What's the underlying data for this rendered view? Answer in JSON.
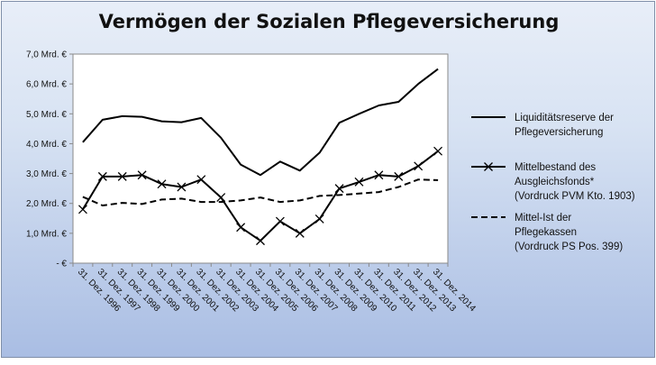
{
  "chart_data": {
    "type": "line",
    "title": "Vermögen der Sozialen Pflegeversicherung",
    "xlabel": "",
    "ylabel": "",
    "ylim": [
      0,
      7
    ],
    "yticks": [
      0,
      1,
      2,
      3,
      4,
      5,
      6,
      7
    ],
    "ytick_labels": [
      "- €",
      "1,0 Mrd. €",
      "2,0 Mrd. €",
      "3,0 Mrd. €",
      "4,0 Mrd. €",
      "5,0 Mrd. €",
      "6,0 Mrd. €",
      "7,0 Mrd. €"
    ],
    "categories": [
      "31. Dez. 1996",
      "31. Dez. 1997",
      "31. Dez. 1998",
      "31. Dez. 1999",
      "31. Dez. 2000",
      "31. Dez. 2001",
      "31. Dez. 2002",
      "31. Dez. 2003",
      "31. Dez. 2004",
      "31. Dez. 2005",
      "31. Dez. 2006",
      "31. Dez. 2007",
      "31. Dez. 2008",
      "31. Dez. 2009",
      "31. Dez. 2010",
      "31. Dez. 2011",
      "31. Dez. 2012",
      "31. Dez. 2013",
      "31. Dez. 2014"
    ],
    "grid": false,
    "legend_position": "right",
    "series": [
      {
        "name": "Liquiditätsreserve der Pflegeversicherung",
        "name_lines": [
          "Liquiditätsreserve der",
          "Pflegeversicherung"
        ],
        "style": "solid",
        "marker": "none",
        "values": [
          4.05,
          4.8,
          4.92,
          4.9,
          4.75,
          4.72,
          4.86,
          4.2,
          3.3,
          2.95,
          3.4,
          3.1,
          3.7,
          4.7,
          5.0,
          5.28,
          5.4,
          6.0,
          6.5
        ]
      },
      {
        "name": "Mittelbestand des Ausgleichsfonds* (Vordruck PVM Kto. 1903)",
        "name_lines": [
          "Mittelbestand des",
          "Ausgleichsfonds*",
          "(Vordruck PVM Kto. 1903)"
        ],
        "style": "solid",
        "marker": "x",
        "values": [
          1.8,
          2.9,
          2.9,
          2.95,
          2.65,
          2.55,
          2.8,
          2.2,
          1.2,
          0.75,
          1.4,
          1.0,
          1.48,
          2.5,
          2.72,
          2.95,
          2.9,
          3.25,
          3.75
        ]
      },
      {
        "name": "Mittel-Ist der Pflegekassen (Vordruck PS Pos. 399)",
        "name_lines": [
          "Mittel-Ist der",
          "Pflegekassen",
          "(Vordruck PS Pos. 399)"
        ],
        "style": "dashed",
        "marker": "none",
        "values": [
          2.22,
          1.93,
          2.02,
          1.98,
          2.13,
          2.16,
          2.05,
          2.05,
          2.1,
          2.2,
          2.05,
          2.1,
          2.25,
          2.28,
          2.33,
          2.38,
          2.55,
          2.8,
          2.78
        ]
      }
    ]
  }
}
